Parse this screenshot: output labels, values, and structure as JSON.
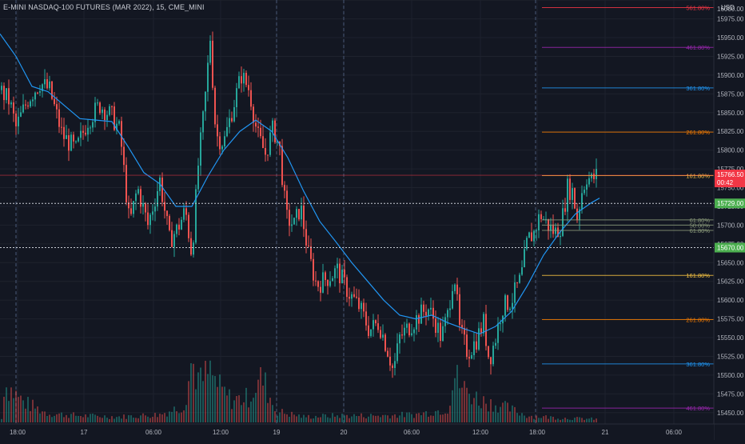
{
  "header": {
    "symbol": "E-MINI NASDAQ-100 FUTURES (MAR 2022), 15, CME_MINI",
    "currency": "USD"
  },
  "colors": {
    "background": "#131722",
    "grid": "#1e222d",
    "up": "#26a69a",
    "down": "#ef5350",
    "ema": "#2196f3",
    "axis_text": "#b2b5be",
    "session_separator": "#4a5a78"
  },
  "chart_data": {
    "type": "candlestick",
    "y_axis": {
      "ylim": [
        15437,
        15998
      ],
      "ticks": [
        15450,
        15475,
        15500,
        15525,
        15550,
        15575,
        15600,
        15625,
        15650,
        15675,
        15700,
        15725,
        15750,
        15775,
        15800,
        15825,
        15850,
        15875,
        15900,
        15925,
        15950,
        15975,
        16000
      ],
      "tick_labels": [
        "15450.00",
        "15475.00",
        "15500.00",
        "15525.00",
        "15550.00",
        "15575.00",
        "15600.00",
        "15625.00",
        "15650.00",
        "15675.00",
        "15700.00",
        "15725.00",
        "15750.00",
        "15775.00",
        "15800.00",
        "15825.00",
        "15850.00",
        "15875.00",
        "15900.00",
        "15925.00",
        "15950.00",
        "15975.00",
        "16000.00"
      ]
    },
    "x_axis": {
      "time_labels": [
        "18:00",
        "17",
        "06:00",
        "12:00",
        "19",
        "20",
        "06:00",
        "12:00",
        "18:00",
        "21",
        "06:00"
      ],
      "session_separators": [
        "18:00",
        "19",
        "20",
        "18:00"
      ]
    },
    "price_points": [
      {
        "t": 0,
        "p": 15880
      },
      {
        "t": 12,
        "p": 15865
      },
      {
        "t": 20,
        "p": 15830
      },
      {
        "t": 35,
        "p": 15868
      },
      {
        "t": 50,
        "p": 15890
      },
      {
        "t": 62,
        "p": 15880
      },
      {
        "t": 78,
        "p": 15820
      },
      {
        "t": 95,
        "p": 15800
      },
      {
        "t": 110,
        "p": 15840
      },
      {
        "t": 125,
        "p": 15860
      },
      {
        "t": 140,
        "p": 15845
      },
      {
        "t": 150,
        "p": 15825
      },
      {
        "t": 162,
        "p": 15700
      },
      {
        "t": 172,
        "p": 15750
      },
      {
        "t": 185,
        "p": 15700
      },
      {
        "t": 200,
        "p": 15760
      },
      {
        "t": 212,
        "p": 15680
      },
      {
        "t": 222,
        "p": 15695
      },
      {
        "t": 232,
        "p": 15720
      },
      {
        "t": 240,
        "p": 15660
      },
      {
        "t": 248,
        "p": 15780
      },
      {
        "t": 256,
        "p": 15860
      },
      {
        "t": 263,
        "p": 15950
      },
      {
        "t": 270,
        "p": 15820
      },
      {
        "t": 280,
        "p": 15810
      },
      {
        "t": 292,
        "p": 15860
      },
      {
        "t": 302,
        "p": 15900
      },
      {
        "t": 312,
        "p": 15880
      },
      {
        "t": 322,
        "p": 15820
      },
      {
        "t": 332,
        "p": 15795
      },
      {
        "t": 342,
        "p": 15830
      },
      {
        "t": 350,
        "p": 15800
      },
      {
        "t": 358,
        "p": 15710
      },
      {
        "t": 368,
        "p": 15700
      },
      {
        "t": 376,
        "p": 15725
      },
      {
        "t": 386,
        "p": 15660
      },
      {
        "t": 396,
        "p": 15620
      },
      {
        "t": 410,
        "p": 15630
      },
      {
        "t": 422,
        "p": 15640
      },
      {
        "t": 436,
        "p": 15610
      },
      {
        "t": 450,
        "p": 15590
      },
      {
        "t": 462,
        "p": 15560
      },
      {
        "t": 474,
        "p": 15570
      },
      {
        "t": 486,
        "p": 15530
      },
      {
        "t": 492,
        "p": 15505
      },
      {
        "t": 500,
        "p": 15550
      },
      {
        "t": 512,
        "p": 15565
      },
      {
        "t": 525,
        "p": 15580
      },
      {
        "t": 535,
        "p": 15590
      },
      {
        "t": 545,
        "p": 15570
      },
      {
        "t": 552,
        "p": 15550
      },
      {
        "t": 560,
        "p": 15580
      },
      {
        "t": 568,
        "p": 15640
      },
      {
        "t": 575,
        "p": 15560
      },
      {
        "t": 585,
        "p": 15530
      },
      {
        "t": 595,
        "p": 15545
      },
      {
        "t": 605,
        "p": 15570
      },
      {
        "t": 612,
        "p": 15520
      },
      {
        "t": 620,
        "p": 15550
      },
      {
        "t": 628,
        "p": 15590
      },
      {
        "t": 640,
        "p": 15600
      },
      {
        "t": 652,
        "p": 15630
      },
      {
        "t": 660,
        "p": 15680
      },
      {
        "t": 668,
        "p": 15690
      },
      {
        "t": 676,
        "p": 15715
      },
      {
        "t": 685,
        "p": 15700
      },
      {
        "t": 694,
        "p": 15690
      },
      {
        "t": 702,
        "p": 15700
      },
      {
        "t": 710,
        "p": 15750
      },
      {
        "t": 716,
        "p": 15745
      },
      {
        "t": 722,
        "p": 15710
      },
      {
        "t": 728,
        "p": 15745
      },
      {
        "t": 734,
        "p": 15765
      },
      {
        "t": 740,
        "p": 15760
      },
      {
        "t": 746,
        "p": 15766
      }
    ],
    "ema_points": [
      {
        "t": 0,
        "p": 15955
      },
      {
        "t": 20,
        "p": 15925
      },
      {
        "t": 40,
        "p": 15885
      },
      {
        "t": 60,
        "p": 15878
      },
      {
        "t": 80,
        "p": 15860
      },
      {
        "t": 100,
        "p": 15842
      },
      {
        "t": 120,
        "p": 15840
      },
      {
        "t": 140,
        "p": 15838
      },
      {
        "t": 160,
        "p": 15805
      },
      {
        "t": 180,
        "p": 15770
      },
      {
        "t": 200,
        "p": 15755
      },
      {
        "t": 220,
        "p": 15725
      },
      {
        "t": 240,
        "p": 15725
      },
      {
        "t": 260,
        "p": 15765
      },
      {
        "t": 280,
        "p": 15800
      },
      {
        "t": 300,
        "p": 15825
      },
      {
        "t": 320,
        "p": 15840
      },
      {
        "t": 340,
        "p": 15825
      },
      {
        "t": 360,
        "p": 15790
      },
      {
        "t": 380,
        "p": 15745
      },
      {
        "t": 400,
        "p": 15705
      },
      {
        "t": 420,
        "p": 15678
      },
      {
        "t": 440,
        "p": 15650
      },
      {
        "t": 460,
        "p": 15625
      },
      {
        "t": 480,
        "p": 15600
      },
      {
        "t": 500,
        "p": 15580
      },
      {
        "t": 520,
        "p": 15575
      },
      {
        "t": 540,
        "p": 15580
      },
      {
        "t": 560,
        "p": 15570
      },
      {
        "t": 580,
        "p": 15562
      },
      {
        "t": 600,
        "p": 15555
      },
      {
        "t": 620,
        "p": 15565
      },
      {
        "t": 640,
        "p": 15585
      },
      {
        "t": 660,
        "p": 15620
      },
      {
        "t": 680,
        "p": 15660
      },
      {
        "t": 700,
        "p": 15690
      },
      {
        "t": 720,
        "p": 15715
      },
      {
        "t": 740,
        "p": 15730
      },
      {
        "t": 750,
        "p": 15736
      }
    ],
    "volume_points": [
      {
        "t": 5,
        "v": 0.35
      },
      {
        "t": 30,
        "v": 0.18
      },
      {
        "t": 60,
        "v": 0.08
      },
      {
        "t": 100,
        "v": 0.06
      },
      {
        "t": 150,
        "v": 0.05
      },
      {
        "t": 200,
        "v": 0.07
      },
      {
        "t": 230,
        "v": 0.15
      },
      {
        "t": 240,
        "v": 0.55
      },
      {
        "t": 250,
        "v": 0.35
      },
      {
        "t": 262,
        "v": 0.45
      },
      {
        "t": 275,
        "v": 0.3
      },
      {
        "t": 290,
        "v": 0.2
      },
      {
        "t": 310,
        "v": 0.22
      },
      {
        "t": 328,
        "v": 0.4
      },
      {
        "t": 345,
        "v": 0.1
      },
      {
        "t": 380,
        "v": 0.05
      },
      {
        "t": 420,
        "v": 0.06
      },
      {
        "t": 470,
        "v": 0.06
      },
      {
        "t": 520,
        "v": 0.07
      },
      {
        "t": 560,
        "v": 0.12
      },
      {
        "t": 568,
        "v": 0.42
      },
      {
        "t": 580,
        "v": 0.3
      },
      {
        "t": 600,
        "v": 0.2
      },
      {
        "t": 630,
        "v": 0.14
      },
      {
        "t": 660,
        "v": 0.06
      },
      {
        "t": 700,
        "v": 0.04
      },
      {
        "t": 745,
        "v": 0.03
      }
    ],
    "fib_levels": [
      {
        "label": "561.80%",
        "value": 15990,
        "color": "#f23645"
      },
      {
        "label": "461.80%",
        "value": 15937,
        "color": "#9c27b0"
      },
      {
        "label": "361.80%",
        "value": 15883,
        "color": "#2196f3"
      },
      {
        "label": "261.80%",
        "value": 15824,
        "color": "#f57c00"
      },
      {
        "label": "161.80%",
        "value": 15766,
        "color": "#f6c343"
      },
      {
        "label": "61.80%",
        "value": 15707,
        "color": "#8a9a7a"
      },
      {
        "label": "50.00%",
        "value": 15700,
        "color": "#8a9a7a"
      },
      {
        "label": "61.80%",
        "value": 15693,
        "color": "#8a9a7a"
      },
      {
        "label": "161.80%",
        "value": 15633,
        "color": "#f6c343"
      },
      {
        "label": "261.80%",
        "value": 15574,
        "color": "#f57c00"
      },
      {
        "label": "361.80%",
        "value": 15515,
        "color": "#2196f3"
      },
      {
        "label": "461.80%",
        "value": 15456,
        "color": "#9c27b0"
      }
    ],
    "horizontal_lines": [
      {
        "value": 15729,
        "label": "15729.00",
        "badge_color": "#4caf50"
      },
      {
        "value": 15670,
        "label": "15670.00",
        "badge_color": "#4caf50"
      }
    ],
    "last_price": {
      "value": 15766.5,
      "label": "15766.50",
      "countdown": "00:42",
      "badge_color": "#f23645"
    }
  }
}
